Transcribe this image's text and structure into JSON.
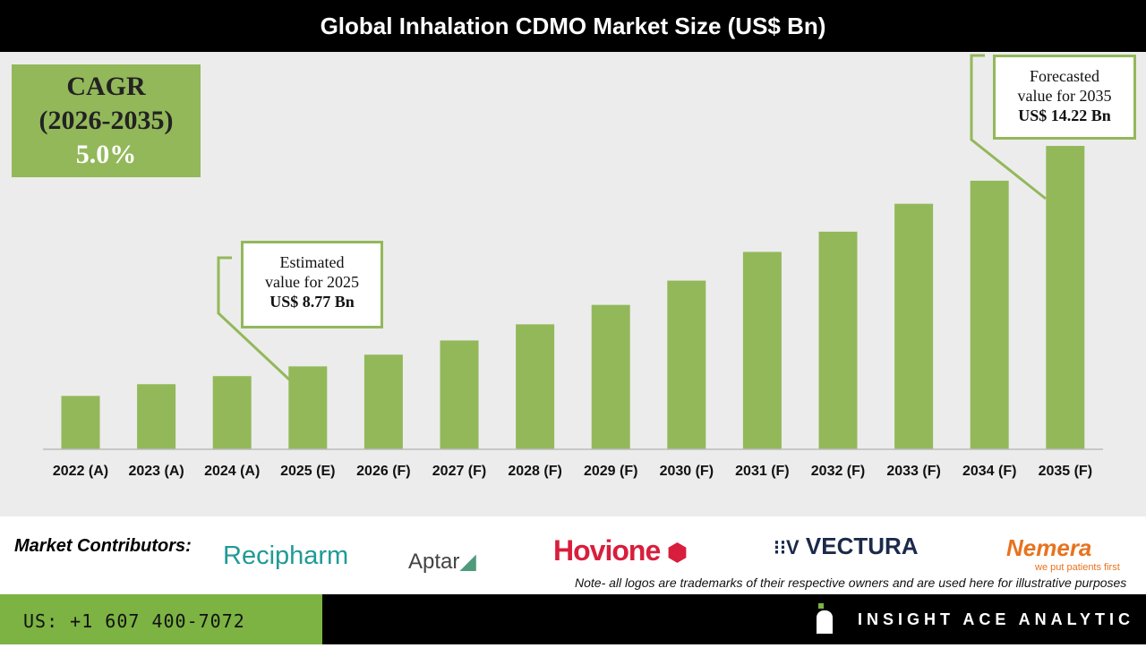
{
  "title": "Global Inhalation CDMO  Market Size (US$ Bn)",
  "cagr": {
    "label": "CAGR",
    "period": "(2026-2035)",
    "value": "5.0%"
  },
  "callouts": {
    "estimated": [
      "Estimated",
      "value for 2025",
      "US$ 8.77 Bn"
    ],
    "forecasted": [
      "Forecasted",
      "value for 2035",
      "US$ 14.22 Bn"
    ]
  },
  "colors": {
    "bar": "#93b85a",
    "plot_bg": "#ececec",
    "footer_green": "#7cb342"
  },
  "chart_data": {
    "type": "bar",
    "title": "Global Inhalation CDMO  Market Size (US$ Bn)",
    "categories": [
      "2022 (A)",
      "2023 (A)",
      "2024 (A)",
      "2025 (E)",
      "2026 (F)",
      "2027 (F)",
      "2028 (F)",
      "2029 (F)",
      "2030 (F)",
      "2031 (F)",
      "2032 (F)",
      "2033 (F)",
      "2034 (F)",
      "2035 (F)"
    ],
    "values": [
      8.04,
      8.33,
      8.53,
      8.77,
      9.06,
      9.41,
      9.81,
      10.29,
      10.89,
      11.6,
      12.1,
      12.79,
      13.36,
      14.22
    ],
    "ylim": [
      6.72,
      16.5
    ],
    "grid": false,
    "xlabel": "",
    "ylabel": ""
  },
  "contributors": {
    "label": "Market Contributors:",
    "logos": [
      "Recipharm",
      "Aptar",
      "Hovione",
      "VECTURA",
      "Nemera"
    ],
    "nemera_tagline": "we put patients first",
    "note": "Note- all logos are trademarks of their respective owners and are used here for illustrative purposes"
  },
  "footer": {
    "phone": "US: +1 607 400-7072",
    "brand": "INSIGHT ACE ANALYTIC"
  }
}
